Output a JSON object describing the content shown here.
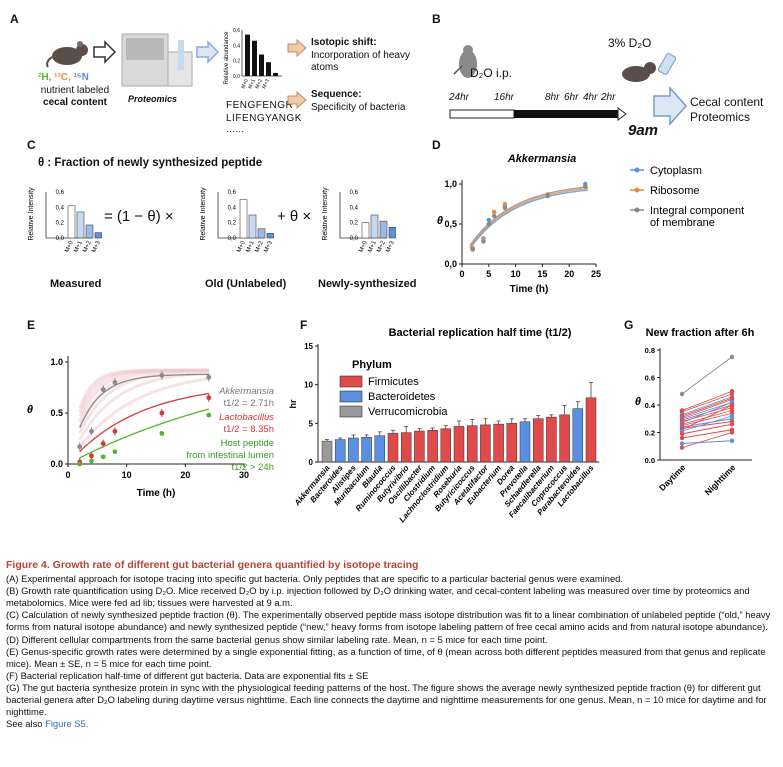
{
  "colors": {
    "cyto": "#5b8fd9",
    "ribo": "#e58b3a",
    "memb": "#8a8a8a",
    "firm": "#e04a4a",
    "bact": "#5b8fe0",
    "verr": "#9a9a9a",
    "green": "#52b52c",
    "red": "#d9363a",
    "caption": "#b5443a"
  },
  "panelA": {
    "label": "A",
    "isotopes": [
      "²H,",
      "¹³C,",
      "¹⁵N"
    ],
    "nutrient": "nutrient labeled",
    "cecal": "cecal content",
    "proteomics": "Proteomics",
    "yaxis": "Relative abundance",
    "ticks": [
      "0,6",
      "0,4",
      "0,2",
      "0,0"
    ],
    "xticks": [
      "M+0",
      "M+1",
      "M+2",
      "M+3"
    ],
    "bars": [
      0.54,
      0.46,
      0.28,
      0.18,
      0.04
    ],
    "seq1": "FENGFENGR",
    "seq2": "LIFENGYANGK",
    "dots": "……",
    "shift_title": "Isotopic shift:",
    "shift_desc1": "Incorporation of heavy",
    "shift_desc2": "atoms",
    "seq_title": "Sequence:",
    "seq_desc": "Specificity of bacteria"
  },
  "panelB": {
    "label": "B",
    "d2o": "3% D₂O",
    "ip": "D₂O i.p.",
    "times": [
      "24hr",
      "16hr",
      "8hr",
      "6hr",
      "4hr",
      "2hr"
    ],
    "harvest": "9am",
    "out1": "Cecal content",
    "out2": "Proteomics"
  },
  "panelC": {
    "label": "C",
    "title": "θ : Fraction of newly synthesized peptide",
    "yaxis": "Relative Intensity",
    "ticks": [
      "0,6",
      "0,4",
      "0,2",
      "0,0"
    ],
    "xticks": [
      "M+0",
      "M+1",
      "M+2",
      "M+3"
    ],
    "measured": [
      0.42,
      0.34,
      0.17,
      0.07
    ],
    "old": [
      0.5,
      0.3,
      0.12,
      0.06
    ],
    "new": [
      0.2,
      0.3,
      0.22,
      0.14
    ],
    "eq1": "= (1 − θ) ×",
    "eq2": "+ θ ×",
    "cap_measured": "Measured",
    "cap_old": "Old (Unlabeled)",
    "cap_new": "Newly-synthesized"
  },
  "panelD": {
    "label": "D",
    "title": "Akkermansia",
    "ylabel": "θ",
    "xlabel": "Time (h)",
    "legend": [
      "Cytoplasm",
      "Ribosome",
      "Integral component",
      "of membrane"
    ],
    "chart_data": {
      "type": "line",
      "title": "Akkermansia",
      "xlabel": "Time (h)",
      "ylabel": "θ",
      "xlim": [
        0,
        25
      ],
      "ylim": [
        0,
        1.0
      ],
      "xticks": [
        "0",
        "5",
        "10",
        "15",
        "20",
        "25"
      ],
      "yticks": [
        "0,0",
        "0,5",
        "1,0"
      ],
      "series": [
        {
          "name": "Cytoplasm",
          "x": [
            2,
            4,
            5,
            6,
            8,
            16,
            23
          ],
          "y": [
            0.2,
            0.32,
            0.55,
            0.65,
            0.72,
            0.85,
            1.0
          ]
        },
        {
          "name": "Ribosome",
          "x": [
            2,
            4,
            5,
            6,
            8,
            16,
            23
          ],
          "y": [
            0.2,
            0.3,
            0.5,
            0.65,
            0.75,
            0.87,
            0.97
          ]
        },
        {
          "name": "Integral component of membrane",
          "x": [
            2,
            4,
            5,
            6,
            8,
            16,
            23
          ],
          "y": [
            0.18,
            0.28,
            0.5,
            0.6,
            0.7,
            0.85,
            0.97
          ]
        }
      ]
    }
  },
  "panelE": {
    "label": "E",
    "ylabel": "θ",
    "xlabel": "Time (h)",
    "akk": "Akkermansia",
    "akk_t": "t1/2 = 2.71h",
    "lacto": "Lactobacillus",
    "lacto_t": "t1/2 = 8.35h",
    "host1": "Host peptide",
    "host2": "from intestinal lumen",
    "host_t": "t1/2 > 24h",
    "chart_data": {
      "type": "line",
      "xlabel": "Time (h)",
      "ylabel": "θ",
      "xlim": [
        0,
        30
      ],
      "ylim": [
        0,
        1.0
      ],
      "xticks": [
        "0",
        "10",
        "20",
        "30"
      ],
      "yticks": [
        "0.0",
        "0.5",
        "1.0"
      ],
      "series": [
        {
          "name": "Akkermansia",
          "x": [
            2,
            4,
            6,
            8,
            16,
            24
          ],
          "y": [
            0.17,
            0.32,
            0.73,
            0.8,
            0.87,
            0.85
          ]
        },
        {
          "name": "Lactobacillus",
          "x": [
            2,
            4,
            6,
            8,
            16,
            24
          ],
          "y": [
            0.02,
            0.08,
            0.2,
            0.32,
            0.5,
            0.65
          ]
        },
        {
          "name": "Host peptide from intestinal lumen",
          "x": [
            2,
            4,
            6,
            8,
            16,
            24
          ],
          "y": [
            0.0,
            0.03,
            0.07,
            0.12,
            0.3,
            0.48
          ]
        }
      ]
    }
  },
  "panelF": {
    "label": "F",
    "title": "Bacterial replication half time (t1/2)",
    "ylabel": "hr",
    "legend_title": "Phylum",
    "legend": [
      "Firmicutes",
      "Bacteroidetes",
      "Verrucomicrobia"
    ],
    "chart_data": {
      "type": "bar",
      "title": "Bacterial replication half time (t1/2)",
      "ylabel": "hr",
      "ylim": [
        0,
        15
      ],
      "yticks": [
        "0",
        "5",
        "10",
        "15"
      ],
      "categories": [
        "Akkermansia",
        "Bacteroides",
        "Alistipes",
        "Muribaculum",
        "Blautia",
        "Ruminococcus",
        "Butyrivibrio",
        "Oscillibacter",
        "Clostridium",
        "Lachnoclostridium",
        "Roseburia",
        "Butyricicoccus",
        "Acetatifactor",
        "Eubacterium",
        "Dorea",
        "Prevotella",
        "Schaedlerella",
        "Faecalibacterium",
        "Coprococcus",
        "Parabacteroides",
        "Lactobacillus"
      ],
      "phylum": [
        "V",
        "B",
        "B",
        "B",
        "B",
        "F",
        "F",
        "F",
        "F",
        "F",
        "F",
        "F",
        "F",
        "F",
        "F",
        "B",
        "F",
        "F",
        "F",
        "B",
        "F"
      ],
      "values": [
        2.7,
        2.9,
        3.1,
        3.2,
        3.4,
        3.7,
        3.8,
        4.0,
        4.1,
        4.3,
        4.6,
        4.7,
        4.8,
        4.9,
        5.0,
        5.2,
        5.6,
        5.8,
        6.1,
        6.9,
        8.3
      ],
      "errors": [
        0.2,
        0.2,
        0.4,
        0.3,
        0.5,
        0.4,
        0.8,
        0.3,
        0.3,
        0.4,
        0.7,
        0.8,
        0.8,
        0.4,
        0.6,
        0.4,
        0.4,
        0.3,
        1.2,
        0.9,
        2.0
      ]
    }
  },
  "panelG": {
    "label": "G",
    "title": "New fraction after 6h",
    "ylabel": "θ",
    "chart_data": {
      "type": "line",
      "title": "New fraction after 6h",
      "ylabel": "θ",
      "ylim": [
        0,
        0.8
      ],
      "yticks": [
        "0.0",
        "0.2",
        "0.4",
        "0.6",
        "0.8"
      ],
      "categories": [
        "Daytime",
        "Nighttime"
      ],
      "pairs": [
        [
          0.48,
          0.75
        ],
        [
          0.36,
          0.5
        ],
        [
          0.35,
          0.48
        ],
        [
          0.33,
          0.46
        ],
        [
          0.32,
          0.45
        ],
        [
          0.31,
          0.44
        ],
        [
          0.3,
          0.42
        ],
        [
          0.29,
          0.4
        ],
        [
          0.28,
          0.38
        ],
        [
          0.27,
          0.42
        ],
        [
          0.26,
          0.36
        ],
        [
          0.25,
          0.34
        ],
        [
          0.24,
          0.3
        ],
        [
          0.23,
          0.28
        ],
        [
          0.22,
          0.4
        ],
        [
          0.21,
          0.32
        ],
        [
          0.19,
          0.26
        ],
        [
          0.16,
          0.22
        ],
        [
          0.12,
          0.14
        ],
        [
          0.09,
          0.2
        ]
      ]
    }
  },
  "caption": {
    "title": "Figure 4.  Growth rate of different gut bacterial genera quantified by isotope tracing",
    "a": "(A) Experimental approach for isotope tracing into specific gut bacteria. Only peptides that are specific to a particular bacterial genus were examined.",
    "b": "(B) Growth rate quantification using D₂O. Mice received D₂O by i.p. injection followed by D₂O drinking water, and cecal-content labeling was measured over time by proteomics and metabolomics. Mice were fed ad lib; tissues were harvested at 9 a.m.",
    "c": "(C) Calculation of newly synthesized peptide fraction (θ). The experimentally observed peptide mass isotope distribution was fit to a linear combination of unlabeled peptide (“old,” heavy forms from natural isotope abundance) and newly synthesized peptide (“new,” heavy forms from isotope labeling pattern of free cecal amino acids and from natural isotope abundance).",
    "d": "(D) Different cellular compartments from the same bacterial genus show similar labeling rate. Mean, n = 5 mice for each time point.",
    "e": "(E) Genus-specific growth rates were determined by a single exponential fitting, as a function of time, of θ (mean across both different peptides measured from that genus and replicate mice). Mean ± SE, n = 5 mice for each time point.",
    "f": "(F) Bacterial replication half-time of different gut bacteria. Data are exponential fits ± SE",
    "g": "(G) The gut bacteria synthesize protein in sync with the physiological feeding patterns of the host. The figure shows the average newly synthesized peptide fraction (θ) for different gut bacterial genera after D₂O labeling during daytime versus nighttime. Each line connects the daytime and nighttime measurements for one genus. Mean, n = 10 mice for daytime and for nighttime.",
    "see": "See also ",
    "see_link": "Figure S5."
  }
}
